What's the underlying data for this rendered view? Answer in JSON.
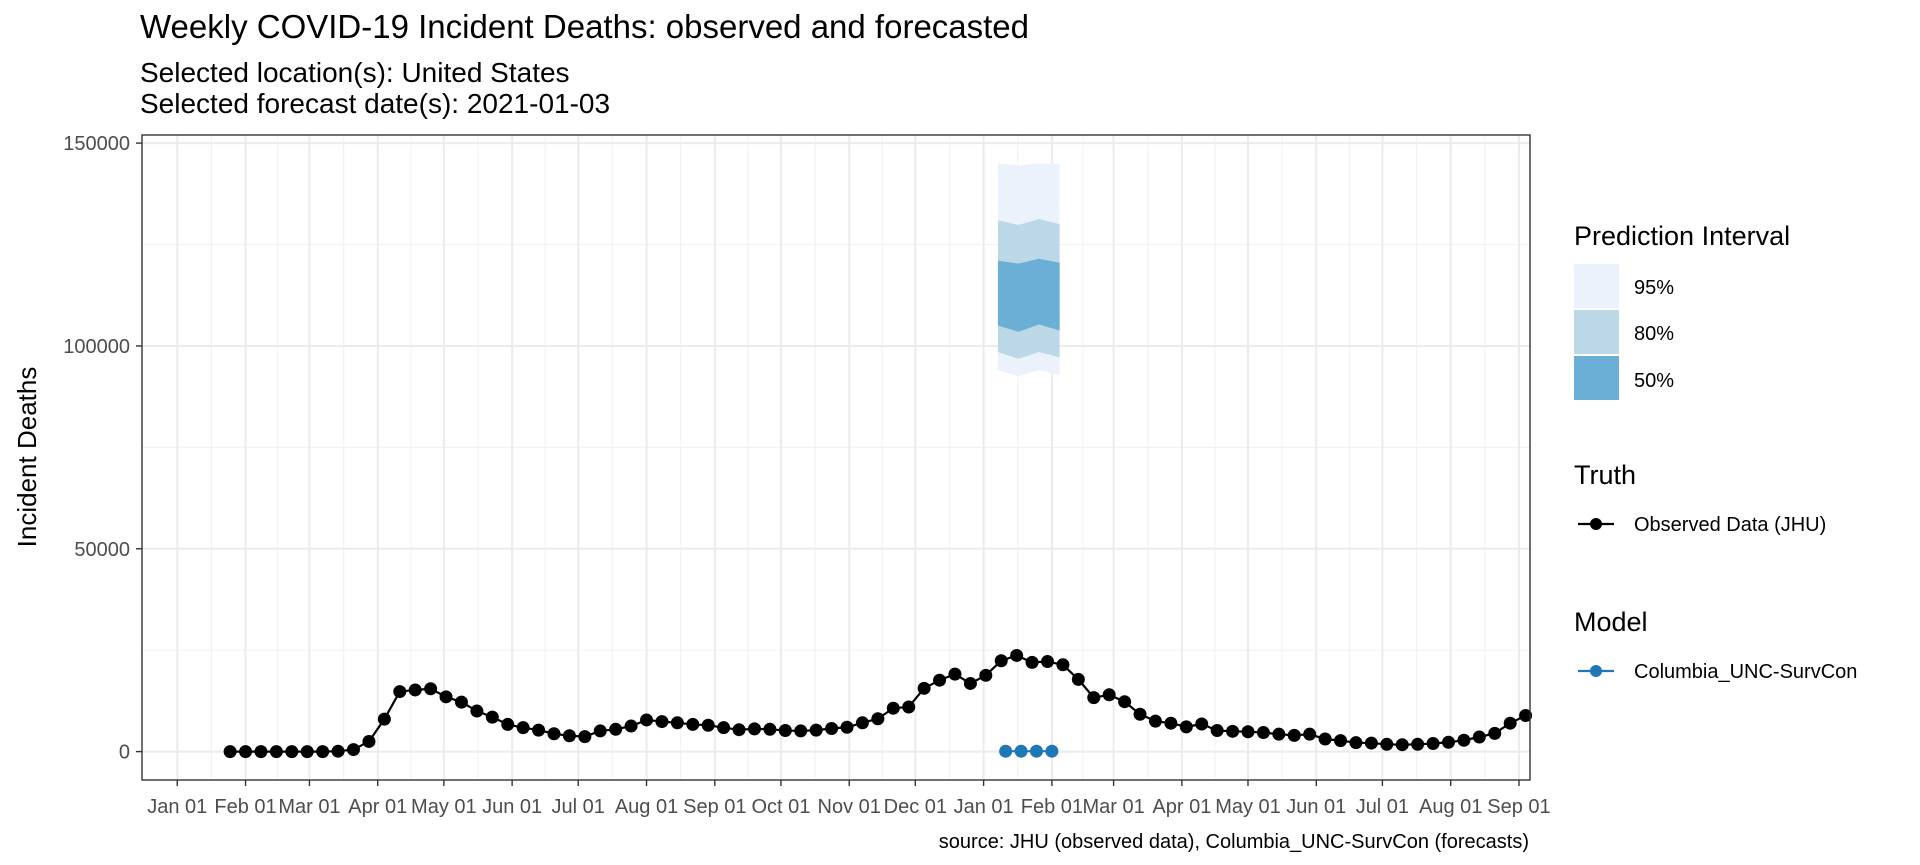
{
  "chart_data": {
    "type": "line",
    "title": "Weekly COVID-19 Incident Deaths: observed and forecasted",
    "subtitle_location": "Selected location(s): United States",
    "subtitle_date": "Selected forecast date(s): 2021-01-03",
    "ylabel": "Incident Deaths",
    "xlabel": "",
    "caption": "source: JHU (observed data), Columbia_UNC-SurvCon (forecasts)",
    "ylim": [
      -7000,
      152000
    ],
    "xlim_days": [
      -16,
      614
    ],
    "y_ticks": [
      0,
      50000,
      100000,
      150000
    ],
    "y_tick_labels": [
      "0",
      "50000",
      "100000",
      "150000"
    ],
    "x_ticks": [
      {
        "label": "Jan 01",
        "day": 0
      },
      {
        "label": "Feb 01",
        "day": 31
      },
      {
        "label": "Mar 01",
        "day": 60
      },
      {
        "label": "Apr 01",
        "day": 91
      },
      {
        "label": "May 01",
        "day": 121
      },
      {
        "label": "Jun 01",
        "day": 152
      },
      {
        "label": "Jul 01",
        "day": 182
      },
      {
        "label": "Aug 01",
        "day": 213
      },
      {
        "label": "Sep 01",
        "day": 244
      },
      {
        "label": "Oct 01",
        "day": 274
      },
      {
        "label": "Nov 01",
        "day": 305
      },
      {
        "label": "Dec 01",
        "day": 335
      },
      {
        "label": "Jan 01",
        "day": 366
      },
      {
        "label": "Feb 01",
        "day": 397
      },
      {
        "label": "Mar 01",
        "day": 425
      },
      {
        "label": "Apr 01",
        "day": 456
      },
      {
        "label": "May 01",
        "day": 486
      },
      {
        "label": "Jun 01",
        "day": 517
      },
      {
        "label": "Jul 01",
        "day": 547
      },
      {
        "label": "Aug 01",
        "day": 578
      },
      {
        "label": "Sep 01",
        "day": 609
      }
    ],
    "observed": {
      "name": "Observed Data (JHU)",
      "color": "#000000",
      "start_day": 24,
      "step_days": 7,
      "values": [
        0,
        0,
        0,
        0,
        0,
        0,
        0,
        100,
        500,
        2500,
        8000,
        14800,
        15200,
        15500,
        13500,
        12200,
        10000,
        8500,
        6700,
        5900,
        5300,
        4400,
        3900,
        3700,
        5100,
        5500,
        6300,
        7800,
        7400,
        7100,
        6700,
        6500,
        5900,
        5400,
        5600,
        5500,
        5200,
        5100,
        5300,
        5700,
        6000,
        7100,
        8100,
        10700,
        11000,
        15600,
        17600,
        19100,
        16800,
        18800,
        22400,
        23700,
        22000,
        22200,
        21400,
        17800,
        13300,
        14000,
        12300,
        9200,
        7500,
        7000,
        6100,
        6800,
        5200,
        5000,
        4900,
        4700,
        4300,
        4000,
        4300,
        3100,
        2700,
        2200,
        2100,
        1800,
        1700,
        1800,
        2000,
        2300,
        2800,
        3600,
        4500,
        7000,
        8900
      ]
    },
    "forecast": {
      "name": "Columbia_UNC-SurvCon",
      "color": "#1f78b4",
      "days": [
        376,
        383,
        390,
        397
      ],
      "values": [
        100,
        100,
        100,
        100
      ],
      "band_start_day": 372.5,
      "band_end_day": 400.5,
      "intervals": [
        {
          "level": "95%",
          "color": "#ebf2fc",
          "lower": [
            94000,
            92500,
            94000,
            92800
          ],
          "upper": [
            145000,
            144500,
            145000,
            144800
          ]
        },
        {
          "level": "80%",
          "color": "#bcd7e6",
          "lower": [
            98500,
            96800,
            98500,
            97200
          ],
          "upper": [
            131000,
            129800,
            131300,
            130000
          ]
        },
        {
          "level": "50%",
          "color": "#6baed6",
          "lower": [
            105000,
            103500,
            105300,
            103800
          ],
          "upper": [
            121000,
            120300,
            121500,
            120500
          ]
        }
      ]
    },
    "legend": {
      "prediction_title": "Prediction Interval",
      "truth_title": "Truth",
      "model_title": "Model"
    }
  }
}
